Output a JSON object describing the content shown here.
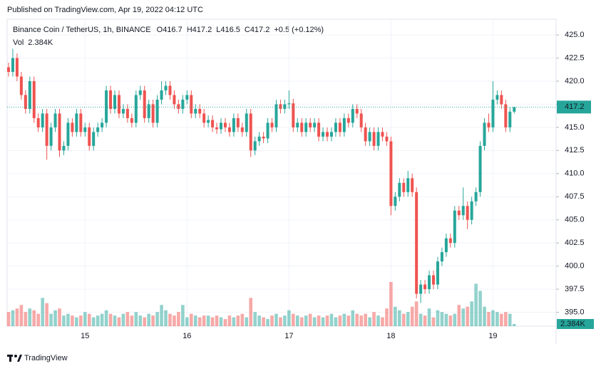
{
  "header": {
    "published": "Published on TradingView.com, Apr 19, 2022 04:12 UTC"
  },
  "footer": {
    "brand": "TradingView"
  },
  "chart_data": {
    "type": "candlestick",
    "title": "Binance Coin / TetherUS, 1h, BINANCE",
    "legend_labels": [
      "O",
      "H",
      "L",
      "C"
    ],
    "change": "+0.5 (+0.12%)",
    "volume_title": "Vol",
    "last_volume_label": "2.384K",
    "up_color": "#26a69a",
    "down_color": "#ef5350",
    "grid": true,
    "categories": [
      null,
      null,
      null,
      null,
      null,
      null,
      null,
      null,
      null,
      null,
      null,
      null,
      null,
      null,
      null,
      null,
      null,
      null,
      "15",
      null,
      null,
      null,
      null,
      null,
      null,
      null,
      null,
      null,
      null,
      null,
      null,
      null,
      null,
      null,
      null,
      null,
      null,
      null,
      null,
      null,
      null,
      null,
      "16",
      null,
      null,
      null,
      null,
      null,
      null,
      null,
      null,
      null,
      null,
      null,
      null,
      null,
      null,
      null,
      null,
      null,
      null,
      null,
      null,
      null,
      null,
      null,
      "17",
      null,
      null,
      null,
      null,
      null,
      null,
      null,
      null,
      null,
      null,
      null,
      null,
      null,
      null,
      null,
      null,
      null,
      null,
      null,
      null,
      null,
      null,
      null,
      "18",
      null,
      null,
      null,
      null,
      null,
      null,
      null,
      null,
      null,
      null,
      null,
      null,
      null,
      null,
      null,
      null,
      null,
      null,
      null,
      null,
      null,
      null,
      null,
      "19",
      null,
      null,
      null,
      null,
      null
    ],
    "open": [
      421.5,
      421.0,
      422.5,
      420.5,
      418.5,
      417.0,
      420.0,
      416.0,
      415.0,
      416.5,
      413.0,
      415.0,
      416.5,
      412.5,
      413.0,
      415.5,
      414.5,
      416.5,
      414.5,
      415,
      413,
      414.5,
      415,
      415.5,
      419,
      417,
      418.5,
      416.5,
      417,
      416,
      415.5,
      418.5,
      419,
      416,
      417.5,
      415.5,
      418,
      419,
      419.5,
      418.5,
      417.5,
      417,
      418,
      418.5,
      416.5,
      417,
      416.5,
      415.5,
      415.8,
      415,
      414.8,
      415.5,
      415,
      414.5,
      416,
      415,
      414.5,
      416.5,
      412.5,
      413.5,
      414,
      413.8,
      415.5,
      415,
      417.5,
      417,
      417.5,
      417.6,
      415,
      415.5,
      414.5,
      415.5,
      415,
      415.5,
      414,
      414.5,
      414,
      414.5,
      415.5,
      414.5,
      416,
      415.5,
      417,
      416.5,
      415,
      413.5,
      414.5,
      413,
      414.5,
      414,
      413.5,
      406.5,
      407.5,
      409,
      408,
      409.5,
      408,
      397,
      398,
      397.5,
      399,
      398,
      400.5,
      401.5,
      403,
      402.5,
      406,
      405.5,
      406.5,
      405,
      407,
      408,
      413,
      415.5,
      415,
      418,
      418.5,
      417.5,
      415,
      416.7
    ],
    "high": [
      422.0,
      423.5,
      423.0,
      421.0,
      419.0,
      420.5,
      420.5,
      416.5,
      417.0,
      417.0,
      415.5,
      417.0,
      417.0,
      413.5,
      416.0,
      416.0,
      417.0,
      417.0,
      415.5,
      415.5,
      415.0,
      415.5,
      416.0,
      419.5,
      419.5,
      419.0,
      419.0,
      417.5,
      417.5,
      416.5,
      419.0,
      419.5,
      419.5,
      418.0,
      418.0,
      418.5,
      420.0,
      420.0,
      420.0,
      419.0,
      418.0,
      418.5,
      419.0,
      419.0,
      417.5,
      417.5,
      417.0,
      416.3,
      416.3,
      415.5,
      416.0,
      416.0,
      415.5,
      416.5,
      416.5,
      415.5,
      417.0,
      417.0,
      414.0,
      414.5,
      414.5,
      416.0,
      416.0,
      418.0,
      418.0,
      418.0,
      419.0,
      418.1,
      416.0,
      416.0,
      416.0,
      416.0,
      416.0,
      416.0,
      415.0,
      415.0,
      415.0,
      416.0,
      416.0,
      416.5,
      416.5,
      417.5,
      417.5,
      417.0,
      415.5,
      415.0,
      415.0,
      415.0,
      415.0,
      414.5,
      414.0,
      408.0,
      409.5,
      409.5,
      410.3,
      410.0,
      408.5,
      398.5,
      398.5,
      399.5,
      399.5,
      401.0,
      402.0,
      403.5,
      403.5,
      406.5,
      406.5,
      408.5,
      407.0,
      407.5,
      408.5,
      413.5,
      416.0,
      416.5,
      420.0,
      419.0,
      419.0,
      418.0,
      417.2,
      417.2
    ],
    "low": [
      420.5,
      420.5,
      420.0,
      418.0,
      416.5,
      416.5,
      415.5,
      414.5,
      414.5,
      411.5,
      412.5,
      414.5,
      411.8,
      412.0,
      412.5,
      414.0,
      414.0,
      414.0,
      414.0,
      412.5,
      412.5,
      414.0,
      414.5,
      415.0,
      416.5,
      416.5,
      416.0,
      416.0,
      415.5,
      415.0,
      415.0,
      418.0,
      415.5,
      415.5,
      415.0,
      415.0,
      417.5,
      418.5,
      418.0,
      417.0,
      416.5,
      416.5,
      417.5,
      416.0,
      416.0,
      416.0,
      415.0,
      415.0,
      414.5,
      414.3,
      414.3,
      414.5,
      414.0,
      414.0,
      414.5,
      414.0,
      414.0,
      411.8,
      412.0,
      413.0,
      413.3,
      413.3,
      414.5,
      414.5,
      416.5,
      416.5,
      417.0,
      414.5,
      414.5,
      414.0,
      414.0,
      414.5,
      414.5,
      413.5,
      413.5,
      413.5,
      413.5,
      414.0,
      414.0,
      414.0,
      415.0,
      415.0,
      416.0,
      414.5,
      413.0,
      413.0,
      412.5,
      412.5,
      413.5,
      413.0,
      405.5,
      406.0,
      407.0,
      407.5,
      407.5,
      407.5,
      396.5,
      396.0,
      397.0,
      397.0,
      397.5,
      397.5,
      400.0,
      401.0,
      402.0,
      402.0,
      405.0,
      405.0,
      404.0,
      404.5,
      406.5,
      407.5,
      412.5,
      414.5,
      414.5,
      417.5,
      417.0,
      414.5,
      414.5,
      416.5
    ],
    "close": [
      421.0,
      422.5,
      420.5,
      418.5,
      417.0,
      420.0,
      416.0,
      415.0,
      416.5,
      413.0,
      415.0,
      416.5,
      412.5,
      413.0,
      415.5,
      414.5,
      416.5,
      414.5,
      415,
      413,
      414.5,
      415,
      415.5,
      419,
      417,
      418.5,
      416.5,
      417,
      416,
      415.5,
      418.5,
      419,
      416,
      417.5,
      415.5,
      418,
      419,
      419.5,
      418.5,
      417.5,
      417,
      418,
      418.5,
      416.5,
      417,
      416.5,
      415.5,
      415.8,
      415,
      414.8,
      415.5,
      415,
      414.5,
      416,
      415,
      414.5,
      416.5,
      412.5,
      413.5,
      414,
      413.8,
      415.5,
      415,
      417.5,
      417,
      417.5,
      417.6,
      415,
      415.5,
      414.5,
      415.5,
      415,
      415.5,
      414,
      414.5,
      414,
      414.5,
      415.5,
      414.5,
      416,
      415.5,
      417,
      416.5,
      415,
      413.5,
      414.5,
      413,
      414.5,
      414,
      413.5,
      406.5,
      407.5,
      409,
      408,
      409.5,
      408,
      397,
      398,
      397.5,
      399,
      398,
      400.5,
      401.5,
      403,
      402.5,
      406,
      405.5,
      406.5,
      405,
      407,
      408,
      413,
      415.5,
      415,
      418,
      418.5,
      417.5,
      415,
      416.7,
      417.2
    ],
    "volume": [
      16,
      18,
      20,
      24,
      16,
      20,
      18,
      14,
      32,
      26,
      14,
      18,
      20,
      12,
      14,
      12,
      10,
      12,
      16,
      14,
      10,
      12,
      14,
      18,
      14,
      12,
      10,
      14,
      16,
      12,
      16,
      12,
      10,
      14,
      12,
      16,
      24,
      18,
      14,
      12,
      16,
      24,
      10,
      14,
      12,
      10,
      12,
      12,
      10,
      12,
      10,
      8,
      12,
      10,
      12,
      14,
      10,
      32,
      16,
      12,
      10,
      8,
      12,
      14,
      10,
      12,
      18,
      14,
      12,
      10,
      12,
      14,
      10,
      12,
      10,
      12,
      14,
      10,
      12,
      14,
      12,
      18,
      14,
      12,
      14,
      10,
      16,
      12,
      10,
      20,
      50,
      22,
      18,
      14,
      16,
      22,
      28,
      14,
      12,
      20,
      10,
      18,
      16,
      14,
      12,
      14,
      24,
      20,
      22,
      28,
      48,
      40,
      22,
      16,
      18,
      16,
      14,
      16,
      14,
      2.384
    ],
    "volume_lim": [
      0,
      50
    ],
    "ylim": [
      393.5,
      426.7
    ],
    "yticks": [
      {
        "value": 395,
        "label": "395.0"
      },
      {
        "value": 397.5,
        "label": "397.5"
      },
      {
        "value": 400,
        "label": "400.0"
      },
      {
        "value": 402.5,
        "label": "402.5"
      },
      {
        "value": 405,
        "label": "405.0"
      },
      {
        "value": 407.5,
        "label": "407.5"
      },
      {
        "value": 410,
        "label": "410.0"
      },
      {
        "value": 412.5,
        "label": "412.5"
      },
      {
        "value": 415,
        "label": "415.0"
      },
      {
        "value": 417.5,
        "label": "417.5"
      },
      {
        "value": 420,
        "label": "420.0"
      },
      {
        "value": 422.5,
        "label": "422.5"
      },
      {
        "value": 425,
        "label": "425.0"
      }
    ]
  }
}
